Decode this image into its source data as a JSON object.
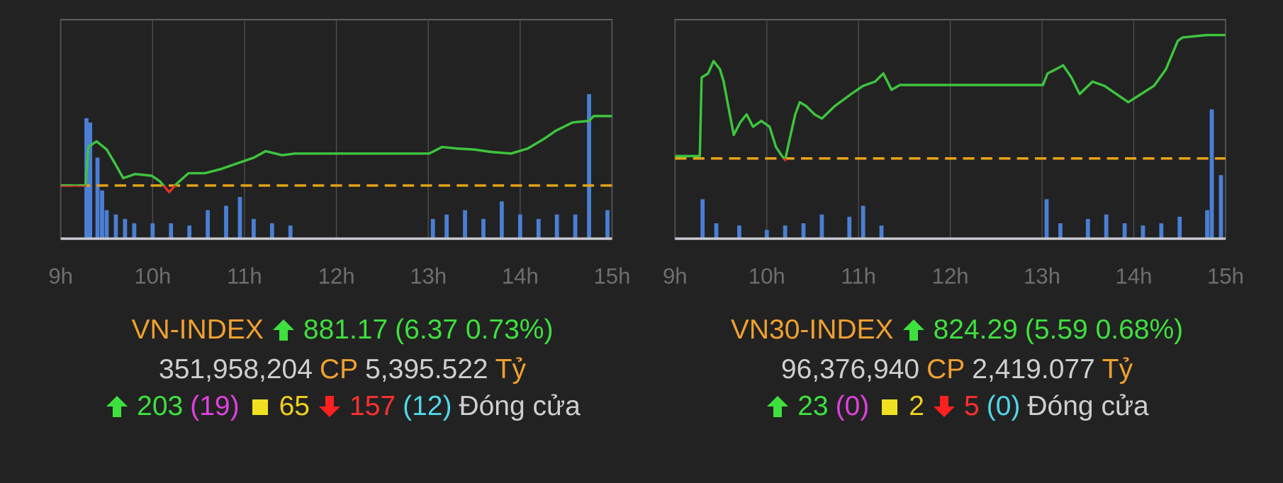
{
  "chart_data": [
    {
      "type": "line",
      "xlim": [
        9,
        15
      ],
      "ylim": [
        869.93,
        890.01
      ],
      "y2lim": [
        0,
        100
      ],
      "xticks": [
        {
          "value": 9,
          "label": "9h"
        },
        {
          "value": 10,
          "label": "10h"
        },
        {
          "value": 11,
          "label": "11h"
        },
        {
          "value": 12,
          "label": "12h"
        },
        {
          "value": 13,
          "label": "13h"
        },
        {
          "value": 14,
          "label": "14h"
        },
        {
          "value": 15,
          "label": "15h"
        }
      ],
      "grid": true,
      "reference": {
        "value": 874.8,
        "color": "#e8a317"
      },
      "below_color": "#e0322b",
      "series": [
        {
          "color": "#3ec43e",
          "x": [
            9.0,
            9.27,
            9.3,
            9.39,
            9.5,
            9.59,
            9.68,
            9.81,
            9.99,
            10.08,
            10.18,
            10.26,
            10.39,
            10.57,
            10.74,
            10.92,
            11.1,
            11.23,
            11.41,
            11.55,
            13.01,
            13.15,
            13.33,
            13.5,
            13.68,
            13.9,
            14.08,
            14.26,
            14.39,
            14.57,
            14.75,
            14.8,
            15.0
          ],
          "values": [
            874.8,
            874.8,
            878.33,
            878.85,
            878.1,
            876.83,
            875.48,
            875.85,
            875.7,
            875.18,
            874.2,
            874.95,
            875.93,
            875.93,
            876.3,
            876.83,
            877.35,
            877.95,
            877.58,
            877.73,
            877.73,
            878.33,
            878.18,
            878.1,
            877.88,
            877.73,
            878.18,
            879.08,
            879.83,
            880.58,
            880.73,
            881.17,
            881.17
          ]
        },
        {
          "color": "#4a7fd4",
          "axis": "y2",
          "kind": "bar",
          "x": [
            9.28,
            9.32,
            9.4,
            9.45,
            9.5,
            9.6,
            9.7,
            9.8,
            10.0,
            10.2,
            10.4,
            10.6,
            10.8,
            10.95,
            11.1,
            11.3,
            11.5,
            13.05,
            13.2,
            13.4,
            13.6,
            13.8,
            14.0,
            14.2,
            14.4,
            14.6,
            14.75,
            14.95
          ],
          "values": [
            55,
            53,
            37,
            22,
            13,
            11,
            9,
            7,
            7,
            7,
            6,
            13,
            15,
            19,
            9,
            7,
            6,
            9,
            11,
            13,
            9,
            17,
            11,
            9,
            11,
            11,
            66,
            13
          ]
        }
      ],
      "summary": {
        "name": "VN-INDEX",
        "value": "881.17",
        "change": "(6.37 0.73%)",
        "volume": "351,958,204",
        "volume_unit": "CP",
        "turnover": "5,395.522",
        "turnover_unit": "Tỷ",
        "advances": "203",
        "ceiling": "(19)",
        "unchanged": "65",
        "declines": "157",
        "floor": "(12)",
        "status": "Đóng cửa"
      }
    },
    {
      "type": "line",
      "xlim": [
        9,
        15
      ],
      "ylim": [
        815.07,
        824.99
      ],
      "y2lim": [
        0,
        100
      ],
      "xticks": [
        {
          "value": 9,
          "label": "9h"
        },
        {
          "value": 10,
          "label": "10h"
        },
        {
          "value": 11,
          "label": "11h"
        },
        {
          "value": 12,
          "label": "12h"
        },
        {
          "value": 13,
          "label": "13h"
        },
        {
          "value": 14,
          "label": "14h"
        },
        {
          "value": 15,
          "label": "15h"
        }
      ],
      "grid": true,
      "reference": {
        "value": 818.7,
        "color": "#e8a317"
      },
      "below_color": "#e0322b",
      "series": [
        {
          "color": "#3ec43e",
          "x": [
            9.0,
            9.27,
            9.29,
            9.36,
            9.42,
            9.49,
            9.53,
            9.58,
            9.64,
            9.71,
            9.78,
            9.85,
            9.94,
            10.03,
            10.1,
            10.16,
            10.2,
            10.25,
            10.31,
            10.36,
            10.43,
            10.52,
            10.6,
            10.74,
            10.92,
            11.05,
            11.18,
            11.27,
            11.36,
            11.45,
            13.01,
            13.06,
            13.15,
            13.23,
            13.32,
            13.41,
            13.55,
            13.68,
            13.81,
            13.94,
            14.08,
            14.22,
            14.35,
            14.48,
            14.53,
            14.79,
            15.0
          ],
          "values": [
            818.81,
            818.81,
            822.37,
            822.55,
            823.11,
            822.74,
            822.18,
            821.07,
            819.77,
            820.33,
            820.7,
            820.14,
            820.4,
            820.14,
            819.22,
            818.85,
            818.63,
            819.59,
            820.7,
            821.25,
            821.07,
            820.7,
            820.51,
            821.07,
            821.62,
            821.99,
            822.18,
            822.55,
            821.81,
            822.03,
            822.03,
            822.55,
            822.74,
            822.92,
            822.37,
            821.62,
            822.18,
            821.99,
            821.62,
            821.25,
            821.62,
            821.99,
            822.74,
            824.03,
            824.18,
            824.29,
            824.29
          ]
        },
        {
          "color": "#4a7fd4",
          "axis": "y2",
          "kind": "bar",
          "x": [
            9.3,
            9.45,
            9.7,
            10.0,
            10.2,
            10.4,
            10.6,
            10.9,
            11.05,
            11.25,
            13.05,
            13.2,
            13.5,
            13.7,
            13.9,
            14.1,
            14.3,
            14.5,
            14.8,
            14.85,
            14.95
          ],
          "values": [
            18,
            7,
            6,
            4,
            6,
            7,
            11,
            10,
            15,
            6,
            18,
            7,
            9,
            11,
            7,
            6,
            7,
            10,
            13,
            59,
            29
          ]
        }
      ],
      "summary": {
        "name": "VN30-INDEX",
        "value": "824.29",
        "change": "(5.59 0.68%)",
        "volume": "96,376,940",
        "volume_unit": "CP",
        "turnover": "2,419.077",
        "turnover_unit": "Tỷ",
        "advances": "23",
        "ceiling": "(0)",
        "unchanged": "2",
        "declines": "5",
        "floor": "(0)",
        "status": "Đóng cửa"
      }
    }
  ]
}
